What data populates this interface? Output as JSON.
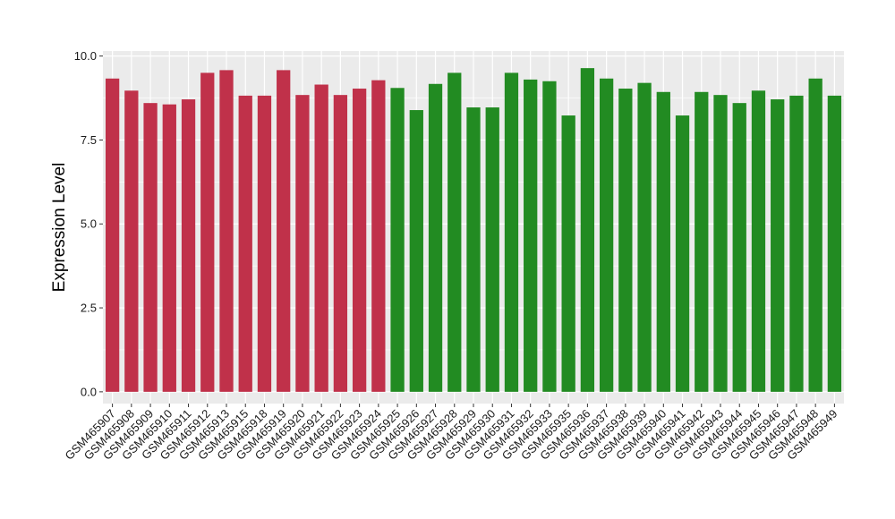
{
  "chart_data": {
    "type": "bar",
    "title": "",
    "xlabel": "",
    "ylabel": "Expression Level",
    "ylim": [
      -0.35,
      10.15
    ],
    "yticks": [
      0.0,
      2.5,
      5.0,
      7.5,
      10.0
    ],
    "ytick_labels": [
      "0.0",
      "2.5",
      "5.0",
      "7.5",
      "10.0"
    ],
    "grid": true,
    "legend": "none",
    "background_color": "#ebebeb",
    "gridline_color": "#ffffff",
    "categories": [
      "GSM465907",
      "GSM465908",
      "GSM465909",
      "GSM465910",
      "GSM465911",
      "GSM465912",
      "GSM465913",
      "GSM465915",
      "GSM465918",
      "GSM465919",
      "GSM465920",
      "GSM465921",
      "GSM465922",
      "GSM465923",
      "GSM465924",
      "GSM465925",
      "GSM465926",
      "GSM465927",
      "GSM465928",
      "GSM465929",
      "GSM465930",
      "GSM465931",
      "GSM465932",
      "GSM465933",
      "GSM465935",
      "GSM465936",
      "GSM465937",
      "GSM465938",
      "GSM465939",
      "GSM465940",
      "GSM465941",
      "GSM465942",
      "GSM465943",
      "GSM465944",
      "GSM465945",
      "GSM465946",
      "GSM465947",
      "GSM465948",
      "GSM465949"
    ],
    "values": [
      9.33,
      8.97,
      8.6,
      8.56,
      8.71,
      9.5,
      9.58,
      8.82,
      8.82,
      9.58,
      8.84,
      9.15,
      8.84,
      9.03,
      9.28,
      9.05,
      8.39,
      9.17,
      9.5,
      8.47,
      8.47,
      9.5,
      9.3,
      9.25,
      8.23,
      9.64,
      9.33,
      9.03,
      9.2,
      8.93,
      8.23,
      8.93,
      8.84,
      8.6,
      8.97,
      8.71,
      8.82,
      9.33,
      8.82
    ],
    "bar_colors": [
      "#c0314a",
      "#c0314a",
      "#c0314a",
      "#c0314a",
      "#c0314a",
      "#c0314a",
      "#c0314a",
      "#c0314a",
      "#c0314a",
      "#c0314a",
      "#c0314a",
      "#c0314a",
      "#c0314a",
      "#c0314a",
      "#c0314a",
      "#228b22",
      "#228b22",
      "#228b22",
      "#228b22",
      "#228b22",
      "#228b22",
      "#228b22",
      "#228b22",
      "#228b22",
      "#228b22",
      "#228b22",
      "#228b22",
      "#228b22",
      "#228b22",
      "#228b22",
      "#228b22",
      "#228b22",
      "#228b22",
      "#228b22",
      "#228b22",
      "#228b22",
      "#228b22",
      "#228b22",
      "#228b22"
    ]
  }
}
